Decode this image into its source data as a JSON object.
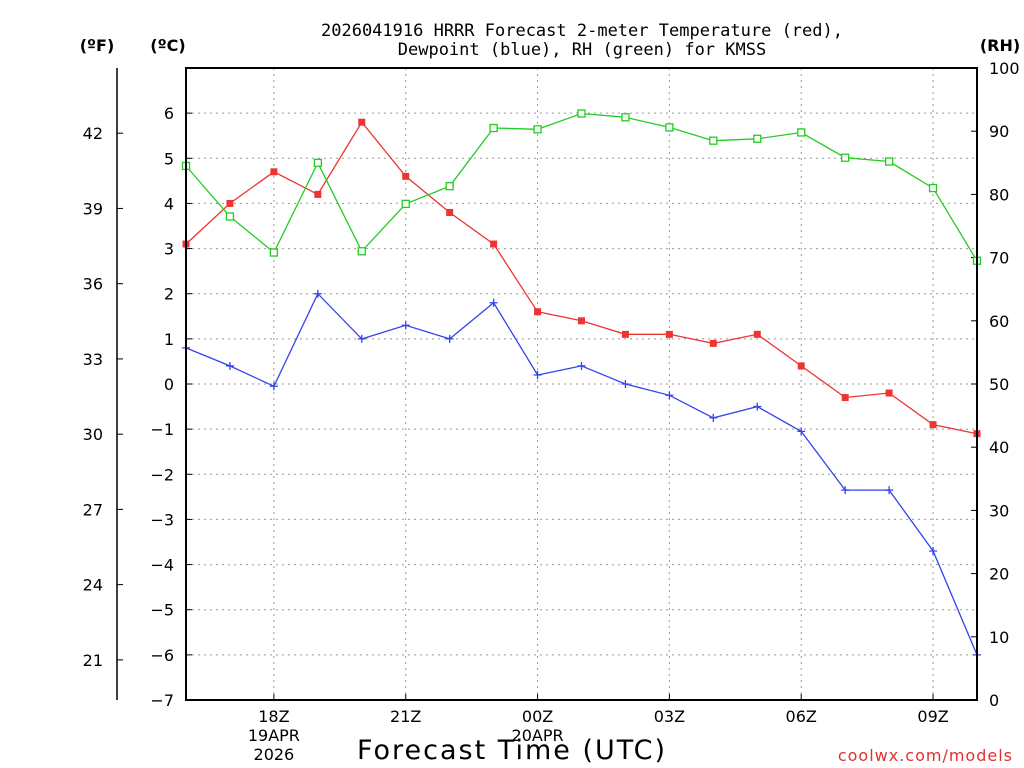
{
  "chart_data": {
    "type": "line",
    "title_line1": "2026041916 HRRR Forecast 2-meter Temperature (red),",
    "title_line2": "Dewpoint (blue), RH (green) for KMSS",
    "xlabel": "Forecast Time (UTC)",
    "unit_f": "(ºF)",
    "unit_c": "(ºC)",
    "unit_rh": "(RH)",
    "watermark": "coolwx.com/models",
    "x_ticks": [
      {
        "hour": 2,
        "label": "18Z",
        "sub1": "19APR",
        "sub2": "2026"
      },
      {
        "hour": 5,
        "label": "21Z",
        "sub1": "",
        "sub2": ""
      },
      {
        "hour": 8,
        "label": "00Z",
        "sub1": "20APR",
        "sub2": ""
      },
      {
        "hour": 11,
        "label": "03Z",
        "sub1": "",
        "sub2": ""
      },
      {
        "hour": 14,
        "label": "06Z",
        "sub1": "",
        "sub2": ""
      },
      {
        "hour": 17,
        "label": "09Z",
        "sub1": "",
        "sub2": ""
      }
    ],
    "xlim": [
      0,
      18
    ],
    "ylim_c": [
      -7,
      7
    ],
    "ylim_f": [
      19.4,
      44.6
    ],
    "ylim_rh": [
      0,
      100
    ],
    "c_ticks": [
      "6",
      "5",
      "4",
      "3",
      "2",
      "1",
      "0",
      "−1",
      "−2",
      "−3",
      "−4",
      "−5",
      "−6",
      "−7"
    ],
    "f_ticks": [
      "42",
      "39",
      "36",
      "33",
      "30",
      "27",
      "24",
      "21"
    ],
    "rh_ticks": [
      "100",
      "90",
      "80",
      "70",
      "60",
      "50",
      "40",
      "30",
      "20",
      "10",
      "0"
    ],
    "series": [
      {
        "name": "Temperature",
        "color": "#ee3333",
        "marker": "filled-square",
        "values": [
          3.1,
          4.0,
          4.7,
          4.2,
          5.8,
          4.6,
          3.8,
          3.1,
          1.6,
          1.4,
          1.1,
          1.1,
          0.9,
          1.1,
          0.4,
          -0.3,
          -0.2,
          -0.9,
          -1.1
        ]
      },
      {
        "name": "Dewpoint",
        "color": "#3344ee",
        "marker": "plus",
        "values": [
          0.8,
          0.4,
          -0.05,
          2.0,
          1.0,
          1.3,
          1.0,
          1.8,
          0.2,
          0.4,
          0.0,
          -0.25,
          -0.75,
          -0.5,
          -1.05,
          -2.35,
          -2.35,
          -3.7,
          -6.0
        ]
      },
      {
        "name": "RH",
        "color": "#22cc22",
        "marker": "open-square",
        "values": [
          84.5,
          76.5,
          70.8,
          85.0,
          71.0,
          78.5,
          81.3,
          90.5,
          90.3,
          92.8,
          92.2,
          90.6,
          88.5,
          88.8,
          89.8,
          85.8,
          85.2,
          81.0,
          69.5
        ]
      }
    ]
  }
}
